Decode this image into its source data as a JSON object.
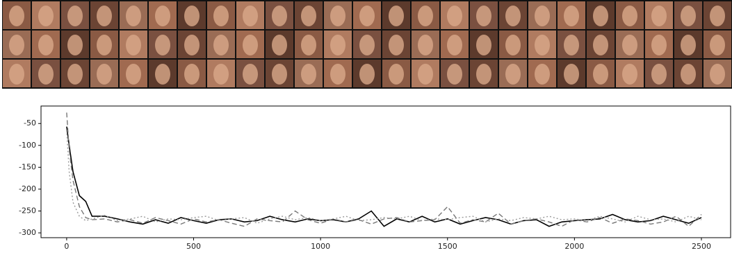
{
  "chart_data": {
    "type": "line",
    "x": [
      0,
      10,
      25,
      50,
      75,
      100,
      150,
      200,
      250,
      300,
      350,
      400,
      450,
      500,
      550,
      600,
      650,
      700,
      750,
      800,
      850,
      900,
      950,
      1000,
      1050,
      1100,
      1150,
      1200,
      1250,
      1300,
      1350,
      1400,
      1450,
      1500,
      1550,
      1600,
      1650,
      1700,
      1750,
      1800,
      1850,
      1900,
      1950,
      2000,
      2050,
      2100,
      2150,
      2200,
      2250,
      2300,
      2350,
      2400,
      2450,
      2500
    ],
    "series": [
      {
        "color": "#000000",
        "style": "solid",
        "values": [
          -57,
          -100,
          -160,
          -215,
          -228,
          -262,
          -262,
          -268,
          -275,
          -280,
          -270,
          -278,
          -265,
          -272,
          -278,
          -270,
          -268,
          -275,
          -272,
          -262,
          -270,
          -275,
          -268,
          -272,
          -270,
          -275,
          -268,
          -250,
          -285,
          -268,
          -275,
          -262,
          -275,
          -268,
          -280,
          -272,
          -265,
          -270,
          -280,
          -272,
          -270,
          -285,
          -275,
          -272,
          -270,
          -268,
          -258,
          -270,
          -275,
          -272,
          -262,
          -270,
          -278,
          -265
        ]
      },
      {
        "color": "#777777",
        "style": "dashed",
        "values": [
          -25,
          -110,
          -180,
          -240,
          -265,
          -270,
          -268,
          -275,
          -270,
          -278,
          -265,
          -272,
          -280,
          -268,
          -275,
          -270,
          -278,
          -285,
          -268,
          -272,
          -275,
          -250,
          -270,
          -278,
          -268,
          -275,
          -270,
          -280,
          -268,
          -265,
          -275,
          -272,
          -270,
          -240,
          -278,
          -270,
          -275,
          -255,
          -280,
          -272,
          -268,
          -275,
          -285,
          -270,
          -275,
          -265,
          -278,
          -268,
          -272,
          -280,
          -275,
          -262,
          -285,
          -258
        ]
      },
      {
        "color": "#999999",
        "style": "dotted",
        "values": [
          -65,
          -160,
          -230,
          -262,
          -272,
          -268,
          -260,
          -272,
          -268,
          -262,
          -275,
          -268,
          -270,
          -265,
          -262,
          -272,
          -268,
          -265,
          -278,
          -268,
          -262,
          -270,
          -265,
          -272,
          -268,
          -262,
          -272,
          -270,
          -265,
          -268,
          -262,
          -272,
          -268,
          -270,
          -265,
          -262,
          -275,
          -268,
          -272,
          -265,
          -268,
          -262,
          -270,
          -268,
          -272,
          -262,
          -268,
          -275,
          -262,
          -270,
          -268,
          -275,
          -262,
          -270
        ]
      }
    ],
    "xlim": [
      -101,
      2615
    ],
    "xticks": [
      0,
      500,
      1000,
      1500,
      2000,
      2500
    ],
    "ylim": [
      -311,
      -10
    ],
    "yticks": [
      -50,
      -100,
      -150,
      -200,
      -250,
      -300
    ],
    "grid": false
  }
}
